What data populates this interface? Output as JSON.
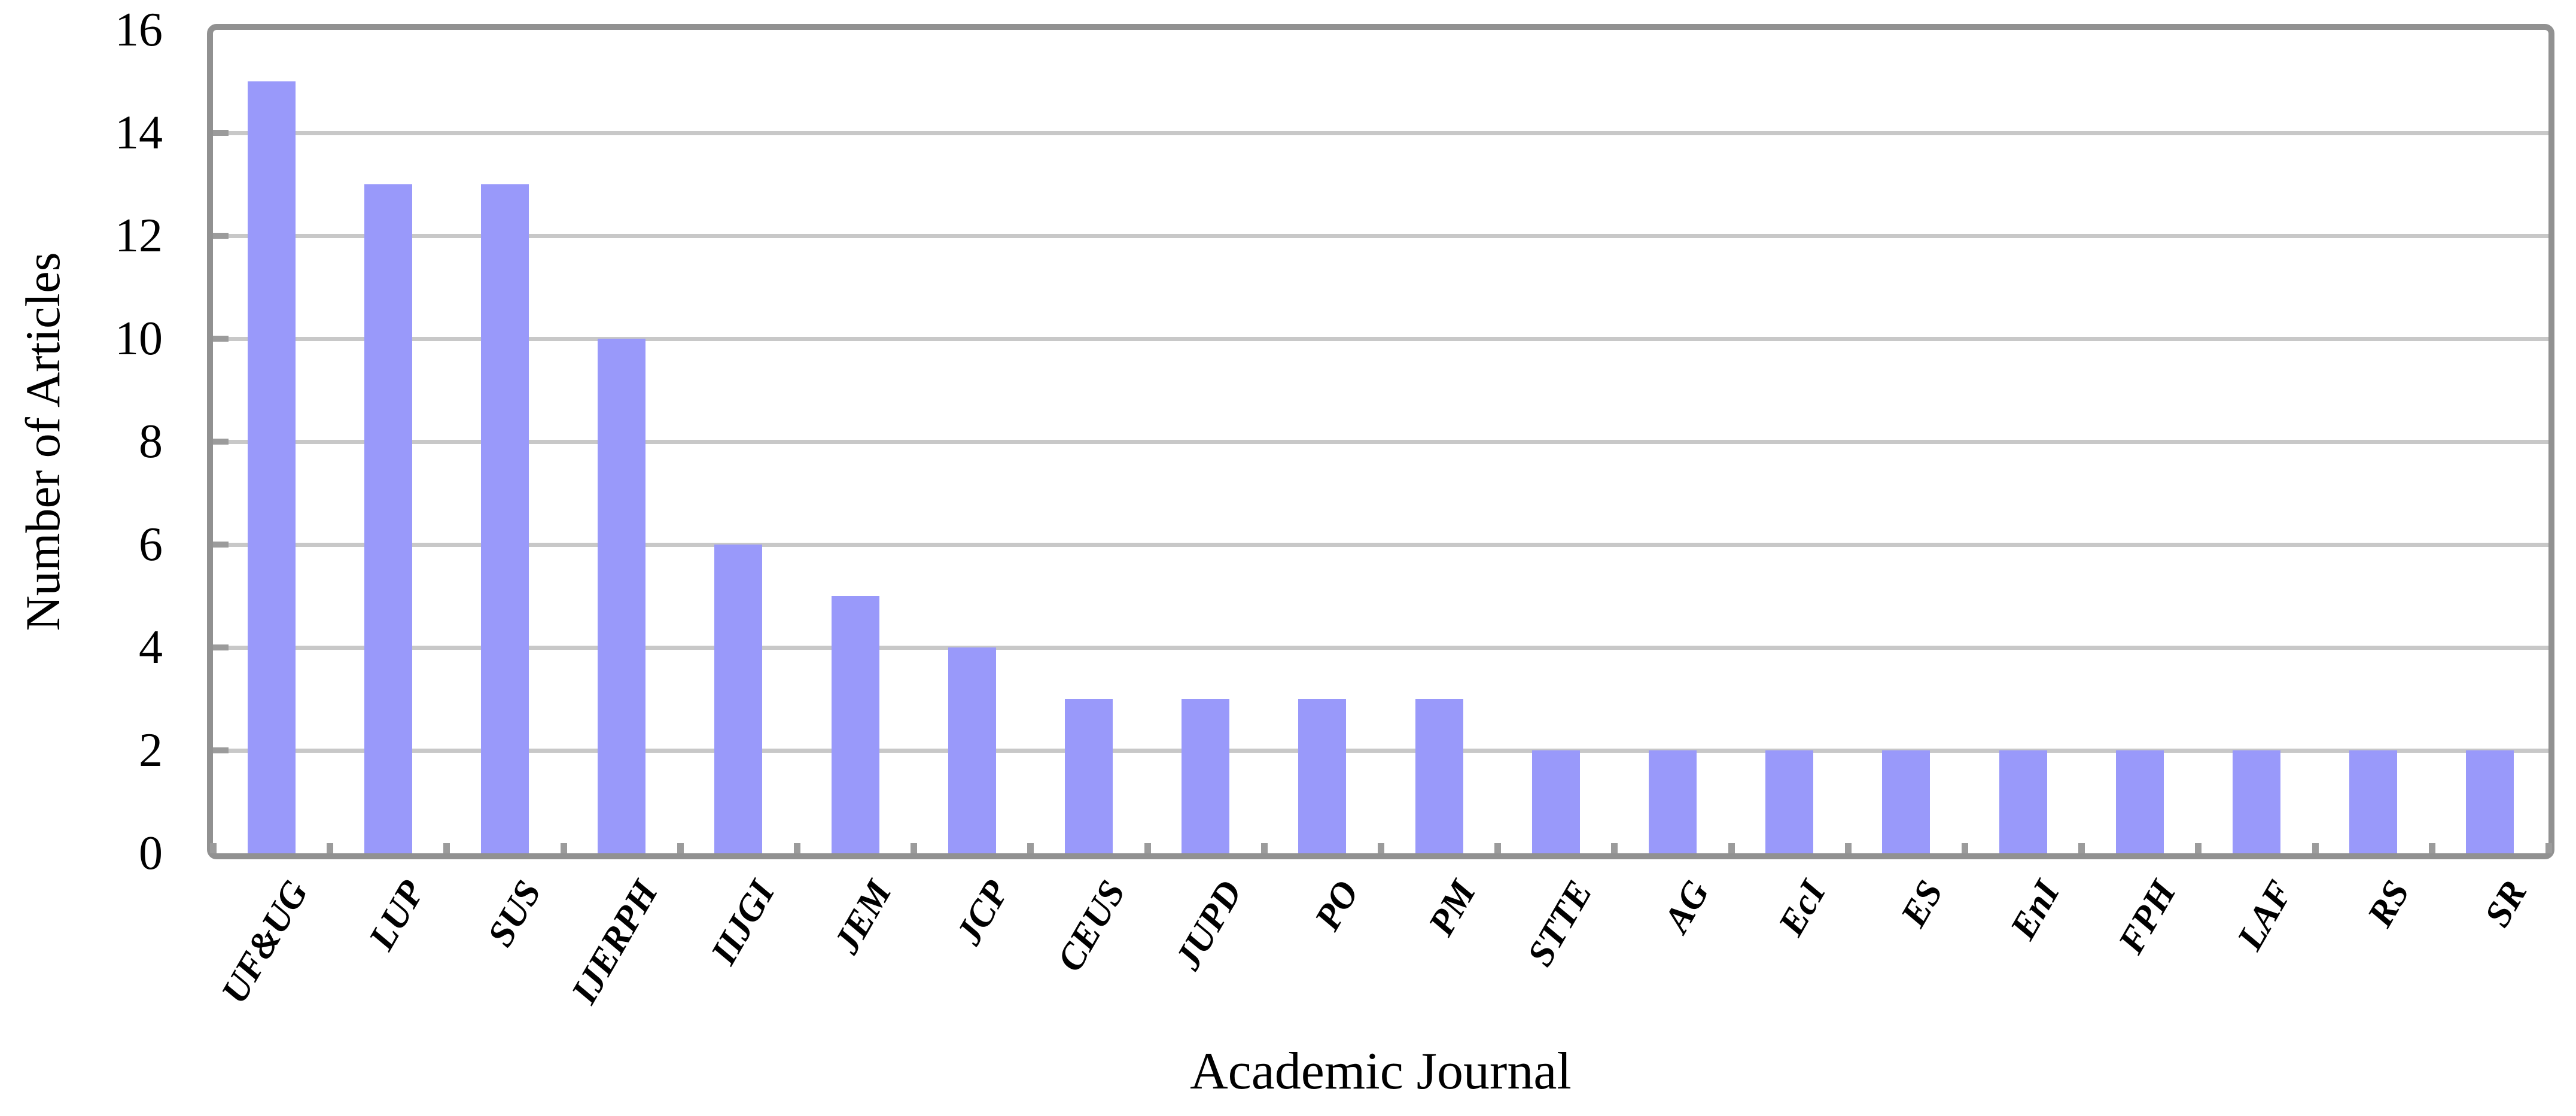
{
  "chart_data": {
    "type": "bar",
    "title": "",
    "xlabel": "Academic Journal",
    "ylabel": "Number of Articles",
    "categories": [
      "UF&UG",
      "LUP",
      "SUS",
      "IJERPH",
      "IIJGI",
      "JEM",
      "JCP",
      "CEUS",
      "JUPD",
      "PO",
      "PM",
      "STTE",
      "AG",
      "EcI",
      "ES",
      "EnI",
      "FPH",
      "LAF",
      "RS",
      "SR"
    ],
    "values": [
      15,
      13,
      13,
      10,
      6,
      5,
      4,
      3,
      3,
      3,
      3,
      2,
      2,
      2,
      2,
      2,
      2,
      2,
      2,
      2
    ],
    "ylim": [
      0,
      16
    ],
    "yticks": [
      0,
      2,
      4,
      6,
      8,
      10,
      12,
      14,
      16
    ],
    "grid": "horizontal",
    "legend": "none",
    "colors": {
      "bar_fill": "#9999FA",
      "gridline": "#C8C8C8",
      "axis_frame": "#919191",
      "tick_mark": "#9B9B9B",
      "text": "#000000",
      "background": "#FFFFFF"
    }
  }
}
